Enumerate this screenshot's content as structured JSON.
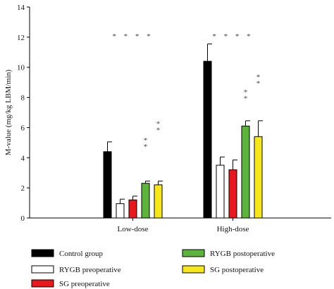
{
  "chart_data": {
    "type": "bar",
    "title": "",
    "xlabel": "",
    "ylabel": "M-value (mg/kg LBM/min)",
    "ylim": [
      0,
      14
    ],
    "yticks": [
      0,
      2,
      4,
      6,
      8,
      10,
      12,
      14
    ],
    "grid": false,
    "legend_position": "bottom",
    "categories": [
      "Low-dose",
      "High-dose"
    ],
    "series": [
      {
        "name": "Control group",
        "color": "#000000",
        "values": [
          4.4,
          10.4
        ],
        "errors": [
          0.65,
          1.15
        ]
      },
      {
        "name": "RYGB preoperative",
        "color": "#ffffff",
        "values": [
          0.95,
          3.5
        ],
        "errors": [
          0.3,
          0.55
        ]
      },
      {
        "name": "SG preoperative",
        "color": "#e8191c",
        "values": [
          1.2,
          3.2
        ],
        "errors": [
          0.25,
          0.65
        ]
      },
      {
        "name": "RYGB postoperative",
        "color": "#5cb43c",
        "values": [
          2.3,
          6.1
        ],
        "errors": [
          0.15,
          0.35
        ]
      },
      {
        "name": "SG postoperative",
        "color": "#f6e61a",
        "values": [
          2.2,
          5.4
        ],
        "errors": [
          0.25,
          1.05
        ]
      }
    ],
    "annotations": [
      {
        "category": "Low-dose",
        "text": "* * * *",
        "y": 11.9
      },
      {
        "category": "High-dose",
        "text": "* * * *",
        "y": 11.9
      },
      {
        "category": "Low-dose",
        "series": "RYGB postoperative",
        "text": "* *",
        "y": 5.0
      },
      {
        "category": "Low-dose",
        "series": "SG postoperative",
        "text": "* *",
        "y": 6.1
      },
      {
        "category": "High-dose",
        "series": "RYGB postoperative",
        "text": "* *",
        "y": 8.2
      },
      {
        "category": "High-dose",
        "series": "SG postoperative",
        "text": "* *",
        "y": 9.2
      }
    ]
  }
}
